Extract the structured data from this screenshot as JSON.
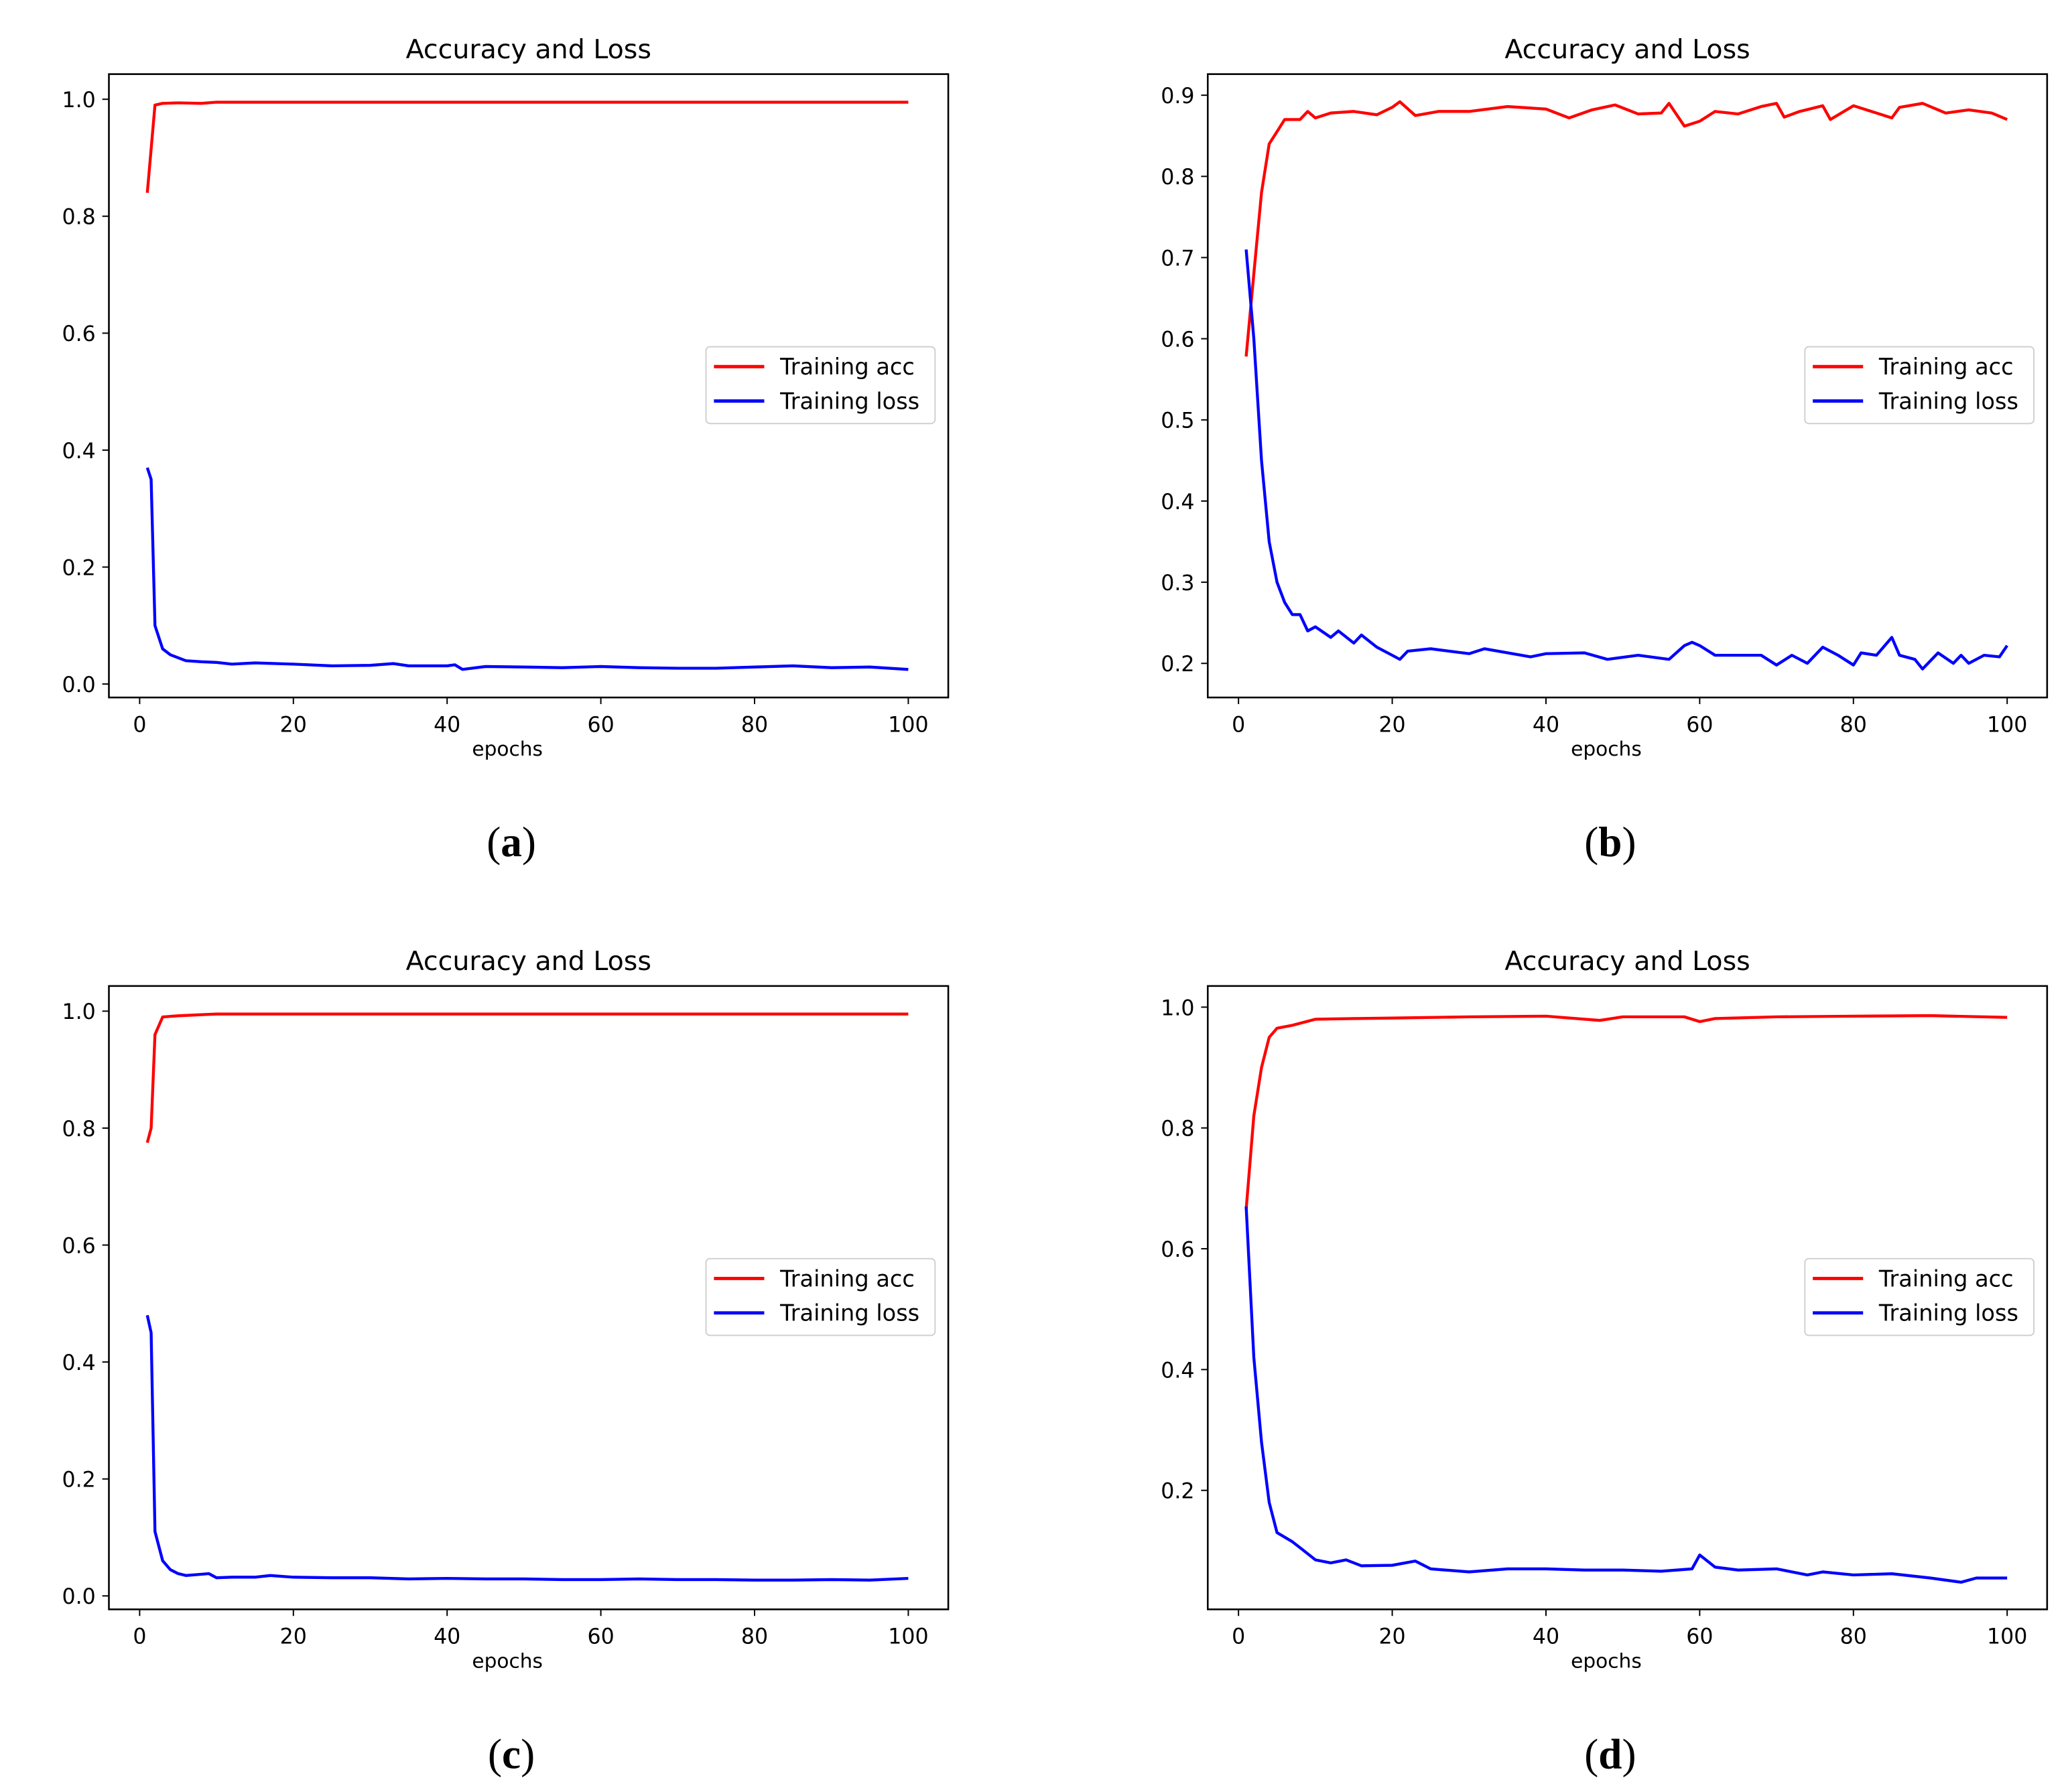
{
  "chart_data": [
    {
      "panel_label": "a",
      "type": "line",
      "title": "Accuracy and Loss",
      "xlabel": "epochs",
      "ylabel": "",
      "xlim": [
        -4,
        105.2
      ],
      "ylim": [
        -0.023,
        1.043
      ],
      "xticks": [
        "0",
        "20",
        "40",
        "60",
        "80",
        "100"
      ],
      "yticks": [
        "0.0",
        "0.2",
        "0.4",
        "0.6",
        "0.8",
        "1.0"
      ],
      "legend_placement": "center-right",
      "grid": false,
      "series": [
        {
          "name": "Training acc",
          "color": "#ff0000",
          "x": [
            1,
            2,
            3,
            5,
            8,
            10,
            20,
            30,
            40,
            50,
            60,
            70,
            80,
            90,
            100
          ],
          "y": [
            0.84,
            0.99,
            0.993,
            0.994,
            0.993,
            0.995,
            0.995,
            0.995,
            0.995,
            0.995,
            0.995,
            0.995,
            0.995,
            0.995,
            0.995
          ]
        },
        {
          "name": "Training loss",
          "color": "#0000ff",
          "x": [
            1,
            1.5,
            2,
            3,
            4,
            5,
            6,
            8,
            10,
            12,
            15,
            20,
            25,
            30,
            33,
            35,
            40,
            41,
            42,
            45,
            50,
            55,
            60,
            65,
            70,
            75,
            80,
            85,
            90,
            95,
            100
          ],
          "y": [
            0.37,
            0.35,
            0.1,
            0.06,
            0.05,
            0.045,
            0.04,
            0.038,
            0.037,
            0.034,
            0.036,
            0.034,
            0.031,
            0.032,
            0.035,
            0.031,
            0.031,
            0.033,
            0.025,
            0.03,
            0.029,
            0.028,
            0.03,
            0.028,
            0.027,
            0.027,
            0.029,
            0.031,
            0.028,
            0.029,
            0.025
          ]
        }
      ]
    },
    {
      "panel_label": "b",
      "type": "line",
      "title": "Accuracy and Loss",
      "xlabel": "epochs",
      "ylabel": "",
      "xlim": [
        -4,
        105.2
      ],
      "ylim": [
        0.158,
        0.926
      ],
      "xticks": [
        "0",
        "20",
        "40",
        "60",
        "80",
        "100"
      ],
      "yticks": [
        "0.2",
        "0.3",
        "0.4",
        "0.5",
        "0.6",
        "0.7",
        "0.8",
        "0.9"
      ],
      "legend_placement": "center-right",
      "grid": false,
      "series": [
        {
          "name": "Training acc",
          "color": "#ff0000",
          "x": [
            1,
            2,
            3,
            4,
            5,
            6,
            8,
            9,
            10,
            12,
            15,
            18,
            20,
            21,
            23,
            26,
            30,
            35,
            40,
            43,
            46,
            49,
            52,
            55,
            56,
            58,
            60,
            62,
            65,
            68,
            70,
            71,
            73,
            76,
            77,
            80,
            83,
            85,
            86,
            89,
            92,
            95,
            98,
            100
          ],
          "y": [
            0.578,
            0.68,
            0.78,
            0.84,
            0.855,
            0.87,
            0.87,
            0.88,
            0.872,
            0.878,
            0.88,
            0.876,
            0.885,
            0.892,
            0.875,
            0.88,
            0.88,
            0.886,
            0.883,
            0.872,
            0.882,
            0.888,
            0.877,
            0.878,
            0.89,
            0.862,
            0.868,
            0.88,
            0.877,
            0.886,
            0.89,
            0.873,
            0.88,
            0.887,
            0.87,
            0.887,
            0.878,
            0.872,
            0.885,
            0.89,
            0.878,
            0.882,
            0.878,
            0.87
          ]
        },
        {
          "name": "Training loss",
          "color": "#0000ff",
          "x": [
            1,
            2,
            3,
            4,
            5,
            6,
            7,
            8,
            9,
            10,
            12,
            13,
            15,
            16,
            18,
            20,
            21,
            22,
            25,
            30,
            32,
            38,
            40,
            45,
            48,
            52,
            56,
            58,
            59,
            60,
            62,
            68,
            70,
            72,
            74,
            76,
            78,
            80,
            81,
            83,
            85,
            86,
            88,
            89,
            91,
            93,
            94,
            95,
            97,
            99,
            100
          ],
          "y": [
            0.71,
            0.6,
            0.45,
            0.35,
            0.3,
            0.275,
            0.26,
            0.26,
            0.24,
            0.245,
            0.232,
            0.24,
            0.225,
            0.235,
            0.22,
            0.21,
            0.205,
            0.215,
            0.218,
            0.212,
            0.218,
            0.208,
            0.212,
            0.213,
            0.205,
            0.21,
            0.205,
            0.222,
            0.226,
            0.222,
            0.21,
            0.21,
            0.198,
            0.21,
            0.2,
            0.22,
            0.21,
            0.198,
            0.213,
            0.21,
            0.232,
            0.21,
            0.205,
            0.193,
            0.213,
            0.2,
            0.21,
            0.2,
            0.21,
            0.208,
            0.222
          ]
        }
      ]
    },
    {
      "panel_label": "c",
      "type": "line",
      "title": "Accuracy and Loss",
      "xlabel": "epochs",
      "ylabel": "",
      "xlim": [
        -4,
        105.2
      ],
      "ylim": [
        -0.023,
        1.043
      ],
      "xticks": [
        "0",
        "20",
        "40",
        "60",
        "80",
        "100"
      ],
      "yticks": [
        "0.0",
        "0.2",
        "0.4",
        "0.6",
        "0.8",
        "1.0"
      ],
      "legend_placement": "center-right",
      "grid": false,
      "series": [
        {
          "name": "Training acc",
          "color": "#ff0000",
          "x": [
            1,
            1.5,
            2,
            3,
            5,
            8,
            10,
            20,
            30,
            40,
            50,
            60,
            70,
            80,
            90,
            100
          ],
          "y": [
            0.775,
            0.8,
            0.96,
            0.99,
            0.992,
            0.994,
            0.995,
            0.995,
            0.995,
            0.995,
            0.995,
            0.995,
            0.995,
            0.995,
            0.995,
            0.995
          ]
        },
        {
          "name": "Training loss",
          "color": "#0000ff",
          "x": [
            1,
            1.5,
            2,
            3,
            4,
            5,
            6,
            8,
            9,
            10,
            12,
            15,
            17,
            20,
            25,
            30,
            35,
            40,
            45,
            50,
            55,
            60,
            65,
            70,
            75,
            80,
            85,
            90,
            95,
            100
          ],
          "y": [
            0.48,
            0.45,
            0.11,
            0.06,
            0.045,
            0.038,
            0.035,
            0.037,
            0.038,
            0.031,
            0.032,
            0.032,
            0.035,
            0.032,
            0.031,
            0.031,
            0.029,
            0.03,
            0.029,
            0.029,
            0.028,
            0.028,
            0.029,
            0.028,
            0.028,
            0.027,
            0.027,
            0.028,
            0.027,
            0.03
          ]
        }
      ]
    },
    {
      "panel_label": "d",
      "type": "line",
      "title": "Accuracy and Loss",
      "xlabel": "epochs",
      "ylabel": "",
      "xlim": [
        -4,
        105.2
      ],
      "ylim": [
        0.003,
        1.035
      ],
      "xticks": [
        "0",
        "20",
        "40",
        "60",
        "80",
        "100"
      ],
      "yticks": [
        "0.2",
        "0.4",
        "0.6",
        "0.8",
        "1.0"
      ],
      "legend_placement": "center-right",
      "grid": false,
      "series": [
        {
          "name": "Training acc",
          "color": "#ff0000",
          "x": [
            1,
            2,
            3,
            4,
            5,
            7,
            10,
            15,
            20,
            30,
            40,
            47,
            50,
            58,
            60,
            62,
            70,
            80,
            90,
            100
          ],
          "y": [
            0.665,
            0.82,
            0.9,
            0.95,
            0.965,
            0.97,
            0.98,
            0.981,
            0.982,
            0.984,
            0.985,
            0.978,
            0.984,
            0.984,
            0.976,
            0.981,
            0.984,
            0.985,
            0.986,
            0.983
          ]
        },
        {
          "name": "Training loss",
          "color": "#0000ff",
          "x": [
            1,
            2,
            3,
            4,
            5,
            7,
            8,
            10,
            12,
            14,
            16,
            20,
            23,
            25,
            30,
            35,
            40,
            45,
            50,
            55,
            59,
            60,
            62,
            65,
            70,
            74,
            76,
            80,
            85,
            90,
            94,
            96,
            100
          ],
          "y": [
            0.67,
            0.42,
            0.28,
            0.18,
            0.13,
            0.115,
            0.105,
            0.085,
            0.08,
            0.085,
            0.075,
            0.076,
            0.083,
            0.07,
            0.065,
            0.07,
            0.07,
            0.068,
            0.068,
            0.066,
            0.07,
            0.093,
            0.073,
            0.068,
            0.07,
            0.06,
            0.065,
            0.06,
            0.062,
            0.055,
            0.048,
            0.055,
            0.055
          ]
        }
      ]
    }
  ]
}
